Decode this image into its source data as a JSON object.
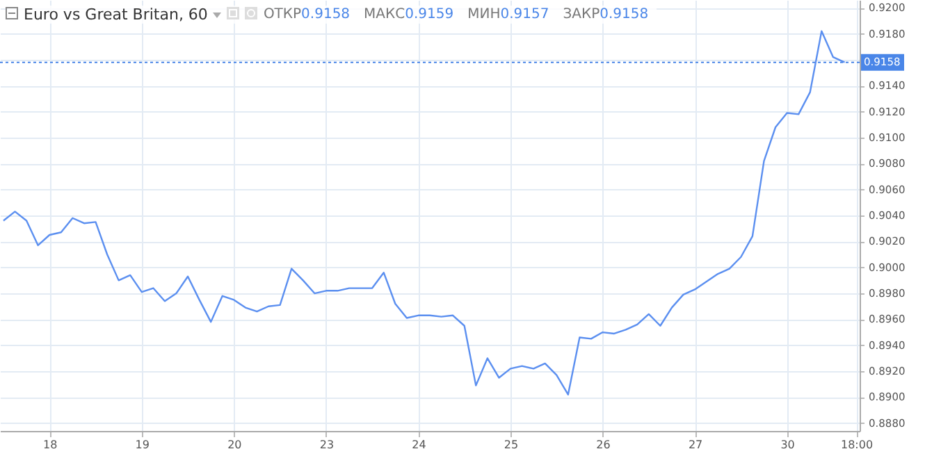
{
  "chart_data": {
    "type": "line",
    "title": "Euro vs Great Britan, 60",
    "annotations": [
      "ОТКР0.9158",
      "МАКС0.9159",
      "МИН0.9157",
      "ЗАКР0.9158"
    ],
    "categories": [
      null,
      null,
      null,
      null,
      "18",
      null,
      null,
      null,
      null,
      null,
      null,
      null,
      "19",
      null,
      null,
      null,
      null,
      null,
      null,
      null,
      "20",
      null,
      null,
      null,
      null,
      null,
      null,
      null,
      "23",
      null,
      null,
      null,
      null,
      null,
      null,
      null,
      "24",
      null,
      null,
      null,
      null,
      null,
      null,
      null,
      "25",
      null,
      null,
      null,
      null,
      null,
      null,
      null,
      "26",
      null,
      null,
      null,
      null,
      null,
      null,
      null,
      "27",
      null,
      null,
      null,
      null,
      null,
      null,
      null,
      "30",
      null,
      null,
      null,
      null,
      null,
      "18:00"
    ],
    "series": [
      {
        "color": "#5b8ff0",
        "values": [
          0.9036,
          0.9043,
          0.9036,
          0.9017,
          0.9025,
          0.9027,
          0.9038,
          0.9034,
          0.9035,
          0.901,
          0.899,
          0.8994,
          0.8981,
          0.8984,
          0.8974,
          0.898,
          0.8993,
          0.8975,
          0.8958,
          0.8978,
          0.8975,
          0.8969,
          0.8966,
          0.897,
          0.8971,
          0.8999,
          0.899,
          0.898,
          0.8982,
          0.8982,
          0.8984,
          0.8984,
          0.8984,
          0.8996,
          0.8972,
          0.8961,
          0.8963,
          0.8963,
          0.8962,
          0.8963,
          0.8955,
          0.8909,
          0.893,
          0.8915,
          0.8922,
          0.8924,
          0.8922,
          0.8926,
          0.8917,
          0.8902,
          0.8946,
          0.8945,
          0.895,
          0.8949,
          0.8952,
          0.8956,
          0.8964,
          0.8955,
          0.8969,
          0.8979,
          0.8983,
          0.8989,
          0.8995,
          0.8999,
          0.9008,
          0.9024,
          0.9082,
          0.9108,
          0.9119,
          0.9118,
          0.9135,
          0.9182,
          0.9162,
          0.9158,
          null
        ]
      }
    ],
    "ylim": [
      0.8874,
      0.9206
    ],
    "yticks": [
      {
        "value": 0.888,
        "label": "0.8880"
      },
      {
        "value": 0.89,
        "label": "0.8900"
      },
      {
        "value": 0.892,
        "label": "0.8920"
      },
      {
        "value": 0.894,
        "label": "0.8940"
      },
      {
        "value": 0.896,
        "label": "0.8960"
      },
      {
        "value": 0.898,
        "label": "0.8980"
      },
      {
        "value": 0.9,
        "label": "0.9000"
      },
      {
        "value": 0.902,
        "label": "0.9020"
      },
      {
        "value": 0.904,
        "label": "0.9040"
      },
      {
        "value": 0.906,
        "label": "0.9060"
      },
      {
        "value": 0.908,
        "label": "0.9080"
      },
      {
        "value": 0.91,
        "label": "0.9100"
      },
      {
        "value": 0.912,
        "label": "0.9120"
      },
      {
        "value": 0.914,
        "label": "0.9140"
      },
      {
        "value": 0.916,
        "label": null
      },
      {
        "value": 0.918,
        "label": "0.9180"
      },
      {
        "value": 0.92,
        "label": "0.9200"
      }
    ],
    "grid": true,
    "line_style": "solid",
    "ref_lines": [
      {
        "axis": "y",
        "value": 0.9158,
        "label": "0.9158",
        "color": "#4a86e8",
        "line_style": "dotted"
      }
    ]
  }
}
